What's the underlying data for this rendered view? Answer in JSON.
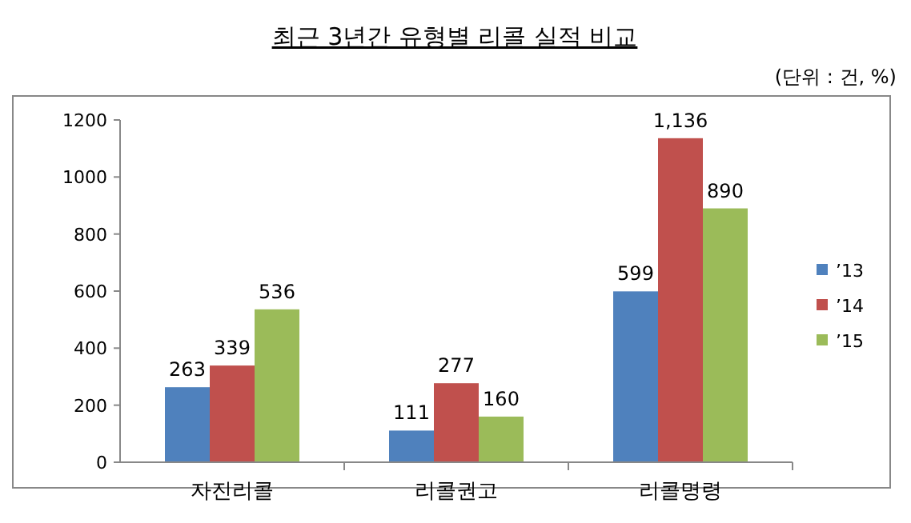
{
  "chart_data": {
    "type": "bar",
    "title": "최근 3년간 유형별 리콜 실적 비교",
    "annotations": [
      "(단위 : 건, %)"
    ],
    "categories": [
      "자진리콜",
      "리콜권고",
      "리콜명령"
    ],
    "series": [
      {
        "name": "’13",
        "color": "#4f81bd",
        "values": [
          263,
          111,
          599
        ],
        "value_labels": [
          "263",
          "111",
          "599"
        ]
      },
      {
        "name": "’14",
        "color": "#c0504d",
        "values": [
          339,
          277,
          1136
        ],
        "value_labels": [
          "339",
          "277",
          "1,136"
        ]
      },
      {
        "name": "’15",
        "color": "#9bbb59",
        "values": [
          536,
          160,
          890
        ],
        "value_labels": [
          "536",
          "160",
          "890"
        ]
      }
    ],
    "ylim": [
      0,
      1200
    ],
    "yticks": [
      0,
      200,
      400,
      600,
      800,
      1000,
      1200
    ],
    "grid": false,
    "legend": "right"
  }
}
